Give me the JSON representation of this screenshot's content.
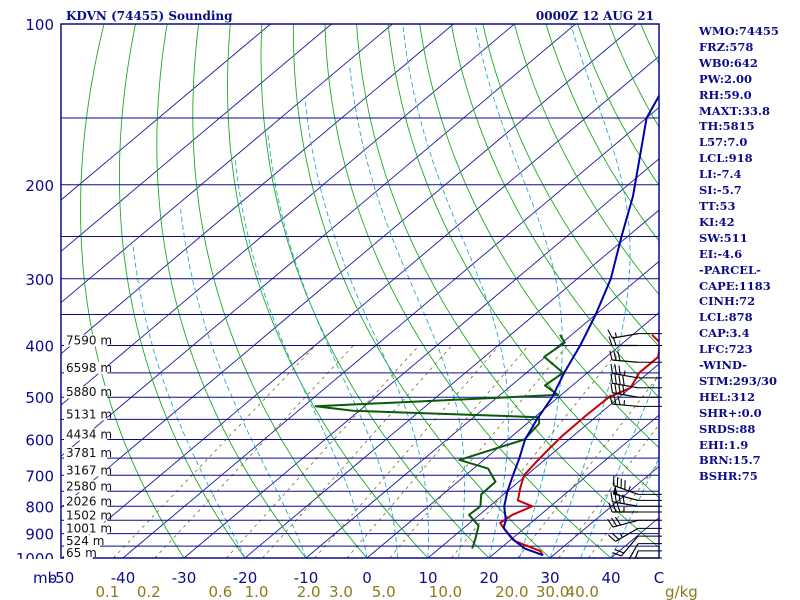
{
  "header": {
    "title": "KDVN (74455) Sounding",
    "datetime": "0000Z 12 AUG 21"
  },
  "colors": {
    "frame": "#0b0b8a",
    "isobar": "#0b0b8a",
    "isotherm": "#1a1a9a",
    "dry_adiabat": "#1faa1f",
    "moist_adiabat": "#2aa7c9",
    "mixing_ratio": "#7a6a1a",
    "temperature": "#cc0000",
    "dewpoint": "#0a5a0a",
    "parcel": "#0000aa",
    "wind_barb": "#000000",
    "stats_text": "#0b0b8a",
    "axis_labels": "#0b0b8a",
    "mixing_labels": "#8a7a1a"
  },
  "stats": [
    "WMO:74455",
    "FRZ:578",
    "WB0:642",
    "PW:2.00",
    "RH:59.0",
    "MAXT:33.8",
    "TH:5815",
    "L57:7.0",
    "LCL:918",
    "LI:-7.4",
    "SI:-5.7",
    "TT:53",
    "KI:42",
    "SW:511",
    "EI:-4.6",
    "-PARCEL-",
    "CAPE:1183",
    "CINH:72",
    "LCL:878",
    "CAP:3.4",
    "LFC:723",
    "-WIND-",
    "STM:293/30",
    "HEL:312",
    "SHR+:0.0",
    "SRDS:88",
    "EHI:1.9",
    "BRN:15.7",
    "BSHR:75"
  ],
  "chart_data": {
    "type": "line",
    "chart_kind": "skew-T log-P sounding diagram",
    "y_axis_unit": "mb",
    "y_scale": "log",
    "ylim": [
      1000,
      100
    ],
    "xlim": [
      -50,
      50
    ],
    "x_axis_unit": "C",
    "pressure_labels": [
      "100",
      "200",
      "300",
      "400",
      "500",
      "600",
      "700",
      "800",
      "900",
      "1000"
    ],
    "isobars": [
      100,
      150,
      200,
      250,
      300,
      350,
      400,
      450,
      500,
      550,
      600,
      650,
      700,
      750,
      800,
      850,
      900,
      950,
      1000
    ],
    "temperature_ticks": [
      "-50",
      "-40",
      "-30",
      "-20",
      "-10",
      "0",
      "10",
      "20",
      "30",
      "40"
    ],
    "temperature_tick_values": [
      -50,
      -40,
      -30,
      -20,
      -10,
      0,
      10,
      20,
      30,
      40
    ],
    "temperature_axis_unit_label": "mb",
    "temperature_axis_end_label": "C",
    "mixing_ratio_labels": [
      "0.1",
      "0.2",
      "0.6",
      "1.0",
      "2.0",
      "3.0",
      "5.0",
      "10.0",
      "20.0",
      "30.0",
      "40.0"
    ],
    "mixing_ratio_unit": "g/kg",
    "height_labels": [
      {
        "text": "7590 m",
        "p": 400
      },
      {
        "text": "6598 m",
        "p": 450
      },
      {
        "text": "5880 m",
        "p": 500
      },
      {
        "text": "5131 m",
        "p": 550
      },
      {
        "text": "4434 m",
        "p": 600
      },
      {
        "text": "3781 m",
        "p": 650
      },
      {
        "text": "3167 m",
        "p": 700
      },
      {
        "text": "2580 m",
        "p": 750
      },
      {
        "text": "2026 m",
        "p": 800
      },
      {
        "text": "1502 m",
        "p": 850
      },
      {
        "text": "1001 m",
        "p": 900
      },
      {
        "text": "524 m",
        "p": 950
      },
      {
        "text": "65 m",
        "p": 1000
      }
    ],
    "series": [
      {
        "key": "temperature",
        "points": [
          [
            382,
            3.2
          ],
          [
            395,
            6.0
          ],
          [
            420,
            8.5
          ],
          [
            450,
            8.5
          ],
          [
            480,
            10.0
          ],
          [
            500,
            8.3
          ],
          [
            540,
            8.1
          ],
          [
            590,
            8.2
          ],
          [
            620,
            8.5
          ],
          [
            660,
            9.0
          ],
          [
            700,
            9.6
          ],
          [
            740,
            11.5
          ],
          [
            780,
            13.5
          ],
          [
            800,
            17.0
          ],
          [
            830,
            15.4
          ],
          [
            860,
            15.0
          ],
          [
            890,
            17.5
          ],
          [
            930,
            21.0
          ],
          [
            970,
            27.0
          ],
          [
            988,
            28.3
          ]
        ]
      },
      {
        "key": "dewpoint",
        "points": [
          [
            382,
            -11.9
          ],
          [
            395,
            -9.6
          ],
          [
            420,
            -10.2
          ],
          [
            450,
            -4.0
          ],
          [
            475,
            -4.5
          ],
          [
            495,
            -0.5
          ],
          [
            505,
            -16.0
          ],
          [
            520,
            -38.0
          ],
          [
            530,
            -31.0
          ],
          [
            545,
            0.7
          ],
          [
            560,
            2.0
          ],
          [
            600,
            2.7
          ],
          [
            655,
            -4.0
          ],
          [
            680,
            2.4
          ],
          [
            720,
            6.2
          ],
          [
            760,
            6.3
          ],
          [
            800,
            8.5
          ],
          [
            830,
            8.3
          ],
          [
            870,
            12.0
          ],
          [
            920,
            14.0
          ],
          [
            960,
            15.4
          ]
        ]
      },
      {
        "key": "parcel",
        "points": [
          [
            105,
            -48.5
          ],
          [
            150,
            -40.0
          ],
          [
            210,
            -27.0
          ],
          [
            250,
            -21.0
          ],
          [
            300,
            -14.5
          ],
          [
            350,
            -10.0
          ],
          [
            400,
            -6.5
          ],
          [
            450,
            -3.8
          ],
          [
            500,
            -1.0
          ],
          [
            550,
            0.8
          ],
          [
            600,
            2.8
          ],
          [
            650,
            5.5
          ],
          [
            700,
            7.8
          ],
          [
            750,
            10.0
          ],
          [
            800,
            12.4
          ],
          [
            850,
            15.4
          ],
          [
            878,
            16.5
          ],
          [
            920,
            20.0
          ],
          [
            960,
            24.0
          ],
          [
            988,
            28.3
          ]
        ]
      }
    ],
    "wind_barbs": [
      {
        "p": 380,
        "dir": 260,
        "spd": 15
      },
      {
        "p": 400,
        "dir": 270,
        "spd": 20
      },
      {
        "p": 430,
        "dir": 275,
        "spd": 30
      },
      {
        "p": 460,
        "dir": 280,
        "spd": 35
      },
      {
        "p": 480,
        "dir": 280,
        "spd": 40
      },
      {
        "p": 500,
        "dir": 280,
        "spd": 40
      },
      {
        "p": 520,
        "dir": 275,
        "spd": 35
      },
      {
        "p": 760,
        "dir": 290,
        "spd": 45
      },
      {
        "p": 780,
        "dir": 285,
        "spd": 50
      },
      {
        "p": 800,
        "dir": 280,
        "spd": 40
      },
      {
        "p": 820,
        "dir": 270,
        "spd": 35
      },
      {
        "p": 850,
        "dir": 255,
        "spd": 30
      },
      {
        "p": 880,
        "dir": 240,
        "spd": 25
      },
      {
        "p": 910,
        "dir": 220,
        "spd": 20
      },
      {
        "p": 940,
        "dir": 210,
        "spd": 15
      },
      {
        "p": 970,
        "dir": 200,
        "spd": 15
      },
      {
        "p": 1000,
        "dir": 190,
        "spd": 10
      }
    ]
  }
}
